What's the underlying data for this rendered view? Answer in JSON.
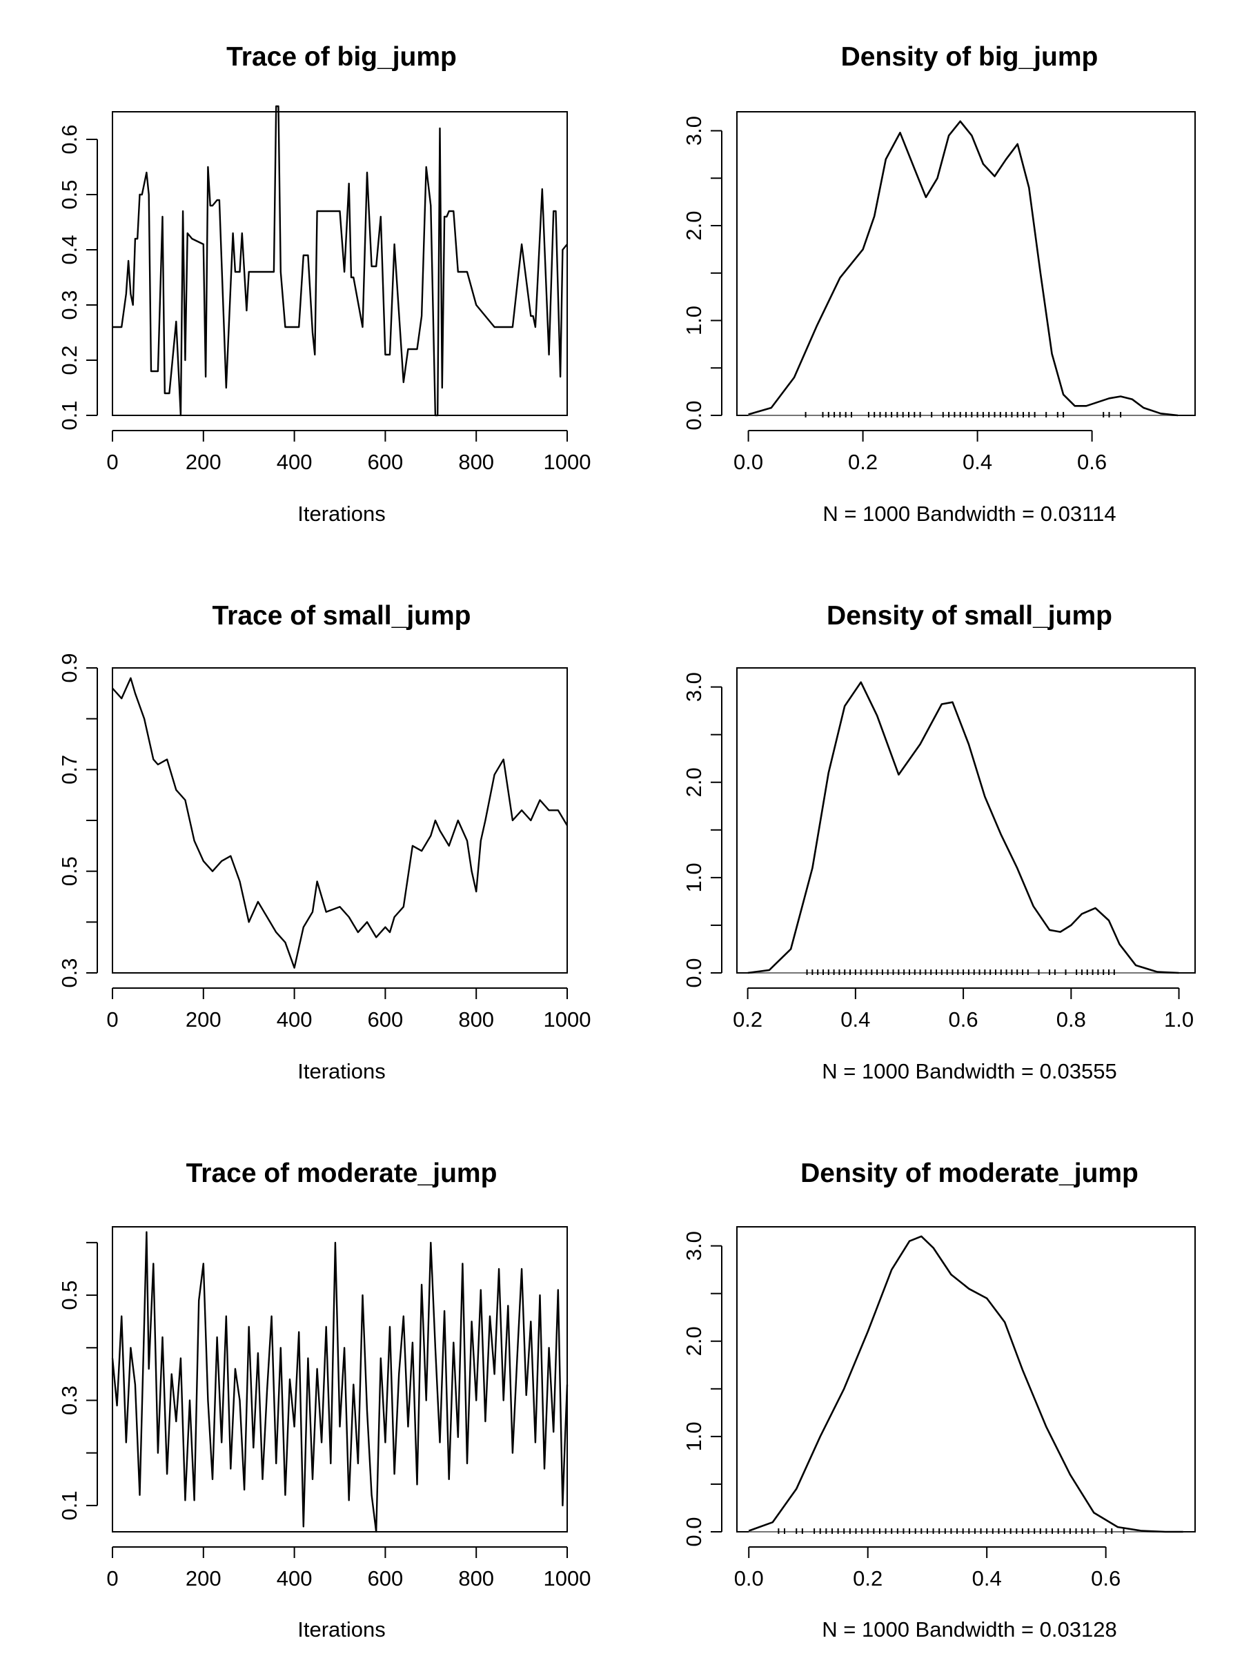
{
  "chart_data": [
    {
      "type": "line",
      "title": "Trace of big_jump",
      "xlabel": "Iterations",
      "ylabel": "",
      "xlim": [
        0,
        1000
      ],
      "ylim": [
        0.1,
        0.65
      ],
      "xticks": [
        "0",
        "200",
        "400",
        "600",
        "800",
        "1000"
      ],
      "yticks": [
        "0.1",
        "0.2",
        "0.3",
        "0.4",
        "0.5",
        "0.6"
      ],
      "series": [
        {
          "x": [
            0,
            20,
            30,
            35,
            40,
            45,
            50,
            55,
            60,
            65,
            70,
            75,
            80,
            85,
            90,
            100,
            110,
            115,
            125,
            140,
            150,
            155,
            160,
            165,
            175,
            200,
            205,
            210,
            215,
            220,
            230,
            235,
            250,
            265,
            270,
            280,
            285,
            295,
            300,
            320,
            340,
            355,
            360,
            365,
            370,
            380,
            400,
            410,
            420,
            430,
            440,
            445,
            450,
            460,
            470,
            480,
            490,
            500,
            510,
            520,
            525,
            530,
            550,
            560,
            570,
            580,
            590,
            600,
            610,
            620,
            640,
            650,
            660,
            670,
            680,
            690,
            700,
            710,
            715,
            720,
            725,
            730,
            735,
            740,
            750,
            760,
            780,
            800,
            820,
            840,
            860,
            880,
            900,
            920,
            925,
            930,
            945,
            960,
            970,
            975,
            985,
            990,
            1000
          ],
          "y": [
            0.26,
            0.26,
            0.32,
            0.38,
            0.32,
            0.3,
            0.42,
            0.42,
            0.5,
            0.5,
            0.52,
            0.54,
            0.5,
            0.18,
            0.18,
            0.18,
            0.46,
            0.14,
            0.14,
            0.27,
            0.1,
            0.47,
            0.2,
            0.43,
            0.42,
            0.41,
            0.17,
            0.55,
            0.48,
            0.48,
            0.49,
            0.49,
            0.15,
            0.43,
            0.36,
            0.36,
            0.43,
            0.29,
            0.36,
            0.36,
            0.36,
            0.36,
            0.66,
            0.66,
            0.36,
            0.26,
            0.26,
            0.26,
            0.39,
            0.39,
            0.25,
            0.21,
            0.47,
            0.47,
            0.47,
            0.47,
            0.47,
            0.47,
            0.36,
            0.52,
            0.35,
            0.35,
            0.26,
            0.54,
            0.37,
            0.37,
            0.46,
            0.21,
            0.21,
            0.41,
            0.16,
            0.22,
            0.22,
            0.22,
            0.28,
            0.55,
            0.48,
            0.1,
            0.1,
            0.62,
            0.15,
            0.46,
            0.46,
            0.47,
            0.47,
            0.36,
            0.36,
            0.3,
            0.28,
            0.26,
            0.26,
            0.26,
            0.41,
            0.28,
            0.28,
            0.26,
            0.51,
            0.21,
            0.47,
            0.47,
            0.17,
            0.4,
            0.41
          ]
        }
      ]
    },
    {
      "type": "area",
      "title": "Density of big_jump",
      "xlabel": "N = 1000   Bandwidth = 0.03114",
      "ylabel": "",
      "xlim": [
        -0.02,
        0.78
      ],
      "ylim": [
        0,
        3.2
      ],
      "xticks": [
        "0.0",
        "0.2",
        "0.4",
        "0.6"
      ],
      "yticks": [
        "0.0",
        "1.0",
        "2.0",
        "3.0"
      ],
      "density": {
        "x": [
          0.0,
          0.04,
          0.08,
          0.12,
          0.16,
          0.2,
          0.22,
          0.24,
          0.265,
          0.29,
          0.31,
          0.33,
          0.35,
          0.37,
          0.39,
          0.41,
          0.43,
          0.45,
          0.47,
          0.49,
          0.51,
          0.53,
          0.55,
          0.57,
          0.59,
          0.61,
          0.63,
          0.65,
          0.67,
          0.69,
          0.72,
          0.75
        ],
        "y": [
          0.01,
          0.08,
          0.4,
          0.95,
          1.45,
          1.75,
          2.1,
          2.7,
          2.98,
          2.6,
          2.3,
          2.5,
          2.95,
          3.1,
          2.95,
          2.65,
          2.52,
          2.7,
          2.86,
          2.4,
          1.5,
          0.65,
          0.22,
          0.1,
          0.1,
          0.14,
          0.18,
          0.2,
          0.17,
          0.08,
          0.02,
          0.0
        ]
      },
      "rug": [
        0.1,
        0.13,
        0.14,
        0.15,
        0.16,
        0.17,
        0.18,
        0.21,
        0.22,
        0.23,
        0.24,
        0.25,
        0.26,
        0.27,
        0.28,
        0.29,
        0.3,
        0.32,
        0.34,
        0.35,
        0.36,
        0.37,
        0.38,
        0.39,
        0.4,
        0.41,
        0.42,
        0.43,
        0.44,
        0.45,
        0.46,
        0.47,
        0.48,
        0.49,
        0.5,
        0.52,
        0.54,
        0.55,
        0.62,
        0.63,
        0.65
      ]
    },
    {
      "type": "line",
      "title": "Trace of small_jump",
      "xlabel": "Iterations",
      "ylabel": "",
      "xlim": [
        0,
        1000
      ],
      "ylim": [
        0.3,
        0.9
      ],
      "xticks": [
        "0",
        "200",
        "400",
        "600",
        "800",
        "1000"
      ],
      "yticks": [
        "0.3",
        "0.5",
        "0.7",
        "0.9"
      ],
      "series": [
        {
          "x": [
            0,
            20,
            40,
            50,
            70,
            80,
            90,
            100,
            120,
            140,
            160,
            170,
            180,
            200,
            220,
            240,
            260,
            280,
            300,
            320,
            340,
            360,
            380,
            400,
            420,
            440,
            450,
            470,
            500,
            520,
            540,
            560,
            580,
            600,
            610,
            620,
            640,
            660,
            680,
            700,
            710,
            720,
            740,
            760,
            780,
            790,
            800,
            810,
            820,
            840,
            860,
            870,
            880,
            900,
            920,
            940,
            960,
            980,
            1000
          ],
          "y": [
            0.86,
            0.84,
            0.88,
            0.85,
            0.8,
            0.76,
            0.72,
            0.71,
            0.72,
            0.66,
            0.64,
            0.6,
            0.56,
            0.52,
            0.5,
            0.52,
            0.53,
            0.48,
            0.4,
            0.44,
            0.41,
            0.38,
            0.36,
            0.31,
            0.39,
            0.42,
            0.48,
            0.42,
            0.43,
            0.41,
            0.38,
            0.4,
            0.37,
            0.39,
            0.38,
            0.41,
            0.43,
            0.55,
            0.54,
            0.57,
            0.6,
            0.58,
            0.55,
            0.6,
            0.56,
            0.5,
            0.46,
            0.56,
            0.6,
            0.69,
            0.72,
            0.66,
            0.6,
            0.62,
            0.6,
            0.64,
            0.62,
            0.62,
            0.59
          ]
        }
      ]
    },
    {
      "type": "area",
      "title": "Density of small_jump",
      "xlabel": "N = 1000   Bandwidth = 0.03555",
      "ylabel": "",
      "xlim": [
        0.18,
        1.03
      ],
      "ylim": [
        0,
        3.2
      ],
      "xticks": [
        "0.2",
        "0.4",
        "0.6",
        "0.8",
        "1.0"
      ],
      "yticks": [
        "0.0",
        "1.0",
        "2.0",
        "3.0"
      ],
      "density": {
        "x": [
          0.2,
          0.24,
          0.28,
          0.32,
          0.35,
          0.38,
          0.41,
          0.44,
          0.48,
          0.52,
          0.56,
          0.58,
          0.61,
          0.64,
          0.67,
          0.7,
          0.73,
          0.76,
          0.78,
          0.8,
          0.82,
          0.845,
          0.87,
          0.89,
          0.92,
          0.96,
          1.0
        ],
        "y": [
          0.0,
          0.03,
          0.25,
          1.1,
          2.1,
          2.8,
          3.05,
          2.7,
          2.08,
          2.4,
          2.82,
          2.84,
          2.4,
          1.85,
          1.45,
          1.1,
          0.7,
          0.45,
          0.43,
          0.5,
          0.62,
          0.68,
          0.55,
          0.3,
          0.08,
          0.01,
          0.0
        ]
      },
      "rug": [
        0.31,
        0.32,
        0.33,
        0.34,
        0.35,
        0.36,
        0.37,
        0.38,
        0.39,
        0.4,
        0.41,
        0.42,
        0.43,
        0.44,
        0.45,
        0.46,
        0.47,
        0.48,
        0.49,
        0.5,
        0.51,
        0.52,
        0.53,
        0.54,
        0.55,
        0.56,
        0.57,
        0.58,
        0.59,
        0.6,
        0.61,
        0.62,
        0.63,
        0.64,
        0.65,
        0.66,
        0.67,
        0.68,
        0.69,
        0.7,
        0.71,
        0.72,
        0.74,
        0.76,
        0.77,
        0.79,
        0.81,
        0.82,
        0.83,
        0.84,
        0.85,
        0.86,
        0.87,
        0.88
      ]
    },
    {
      "type": "line",
      "title": "Trace of moderate_jump",
      "xlabel": "Iterations",
      "ylabel": "",
      "xlim": [
        0,
        1000
      ],
      "ylim": [
        0.05,
        0.63
      ],
      "xticks": [
        "0",
        "200",
        "400",
        "600",
        "800",
        "1000"
      ],
      "yticks": [
        "0.1",
        "0.3",
        "0.5"
      ],
      "series": [
        {
          "x": [
            0,
            10,
            20,
            30,
            40,
            50,
            60,
            70,
            75,
            80,
            90,
            100,
            110,
            120,
            130,
            140,
            150,
            160,
            170,
            180,
            190,
            200,
            210,
            220,
            230,
            240,
            250,
            260,
            270,
            280,
            290,
            300,
            310,
            320,
            330,
            340,
            350,
            360,
            370,
            380,
            390,
            400,
            410,
            420,
            430,
            440,
            450,
            460,
            470,
            480,
            490,
            500,
            510,
            520,
            530,
            540,
            550,
            560,
            570,
            580,
            590,
            600,
            610,
            620,
            630,
            640,
            650,
            660,
            670,
            680,
            690,
            700,
            710,
            720,
            730,
            740,
            750,
            760,
            770,
            780,
            790,
            800,
            810,
            820,
            830,
            840,
            850,
            860,
            870,
            880,
            890,
            900,
            910,
            920,
            930,
            940,
            950,
            960,
            970,
            980,
            990,
            995,
            1000
          ],
          "y": [
            0.38,
            0.29,
            0.46,
            0.22,
            0.4,
            0.33,
            0.12,
            0.45,
            0.62,
            0.36,
            0.56,
            0.2,
            0.42,
            0.16,
            0.35,
            0.26,
            0.38,
            0.11,
            0.3,
            0.11,
            0.49,
            0.56,
            0.3,
            0.15,
            0.42,
            0.22,
            0.46,
            0.17,
            0.36,
            0.3,
            0.13,
            0.44,
            0.21,
            0.39,
            0.15,
            0.32,
            0.46,
            0.18,
            0.4,
            0.12,
            0.34,
            0.25,
            0.43,
            0.06,
            0.38,
            0.15,
            0.36,
            0.22,
            0.44,
            0.18,
            0.6,
            0.25,
            0.4,
            0.11,
            0.33,
            0.18,
            0.5,
            0.28,
            0.12,
            0.05,
            0.38,
            0.22,
            0.44,
            0.16,
            0.35,
            0.46,
            0.25,
            0.41,
            0.14,
            0.52,
            0.3,
            0.6,
            0.4,
            0.22,
            0.47,
            0.15,
            0.41,
            0.23,
            0.56,
            0.18,
            0.45,
            0.3,
            0.51,
            0.26,
            0.46,
            0.35,
            0.55,
            0.3,
            0.48,
            0.2,
            0.38,
            0.55,
            0.31,
            0.45,
            0.22,
            0.5,
            0.17,
            0.4,
            0.24,
            0.51,
            0.1,
            0.22,
            0.33
          ]
        }
      ]
    },
    {
      "type": "area",
      "title": "Density of moderate_jump",
      "xlabel": "N = 1000   Bandwidth = 0.03128",
      "ylabel": "",
      "xlim": [
        -0.02,
        0.75
      ],
      "ylim": [
        0,
        3.2
      ],
      "xticks": [
        "0.0",
        "0.2",
        "0.4",
        "0.6"
      ],
      "yticks": [
        "0.0",
        "1.0",
        "2.0",
        "3.0"
      ],
      "density": {
        "x": [
          0.0,
          0.04,
          0.08,
          0.12,
          0.16,
          0.2,
          0.24,
          0.27,
          0.29,
          0.31,
          0.34,
          0.37,
          0.4,
          0.43,
          0.46,
          0.5,
          0.54,
          0.58,
          0.62,
          0.66,
          0.7,
          0.73
        ],
        "y": [
          0.01,
          0.1,
          0.45,
          1.0,
          1.5,
          2.1,
          2.75,
          3.05,
          3.1,
          2.98,
          2.7,
          2.55,
          2.45,
          2.2,
          1.7,
          1.1,
          0.6,
          0.2,
          0.05,
          0.01,
          0.0,
          0.0
        ]
      },
      "rug": [
        0.05,
        0.06,
        0.08,
        0.09,
        0.11,
        0.12,
        0.13,
        0.14,
        0.15,
        0.16,
        0.17,
        0.18,
        0.19,
        0.2,
        0.21,
        0.22,
        0.23,
        0.24,
        0.25,
        0.26,
        0.27,
        0.28,
        0.29,
        0.3,
        0.31,
        0.32,
        0.33,
        0.34,
        0.35,
        0.36,
        0.37,
        0.38,
        0.39,
        0.4,
        0.41,
        0.42,
        0.43,
        0.44,
        0.45,
        0.46,
        0.47,
        0.48,
        0.49,
        0.5,
        0.51,
        0.52,
        0.53,
        0.54,
        0.55,
        0.56,
        0.57,
        0.58,
        0.6,
        0.61,
        0.63
      ]
    }
  ]
}
